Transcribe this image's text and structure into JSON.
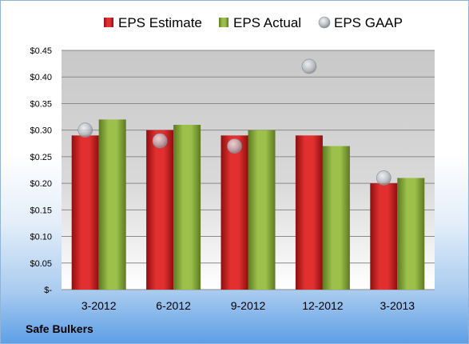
{
  "caption": "Safe Bulkers",
  "colors": {
    "estimate": "#d42020",
    "actual": "#8fb13c",
    "gaap": "#b8bcc2",
    "plot_top": "#c8c8c8",
    "plot_bottom": "#ffffff"
  },
  "chart_data": {
    "type": "bar",
    "title": "",
    "xlabel": "",
    "ylabel": "",
    "categories": [
      "3-2012",
      "6-2012",
      "9-2012",
      "12-2012",
      "3-2013"
    ],
    "series": [
      {
        "name": "EPS Estimate",
        "kind": "bar",
        "values": [
          0.29,
          0.3,
          0.29,
          0.29,
          0.2
        ]
      },
      {
        "name": "EPS Actual",
        "kind": "bar",
        "values": [
          0.32,
          0.31,
          0.3,
          0.27,
          0.21
        ]
      },
      {
        "name": "EPS GAAP",
        "kind": "marker",
        "values": [
          0.3,
          0.28,
          0.27,
          0.42,
          0.21
        ]
      }
    ],
    "ylim": [
      0,
      0.45
    ],
    "yticks": [
      0,
      0.05,
      0.1,
      0.15,
      0.2,
      0.25,
      0.3,
      0.35,
      0.4,
      0.45
    ],
    "ytick_labels": [
      "$-",
      "$0.05",
      "$0.10",
      "$0.15",
      "$0.20",
      "$0.25",
      "$0.30",
      "$0.35",
      "$0.40",
      "$0.45"
    ],
    "grid": true,
    "legend_position": "top"
  }
}
